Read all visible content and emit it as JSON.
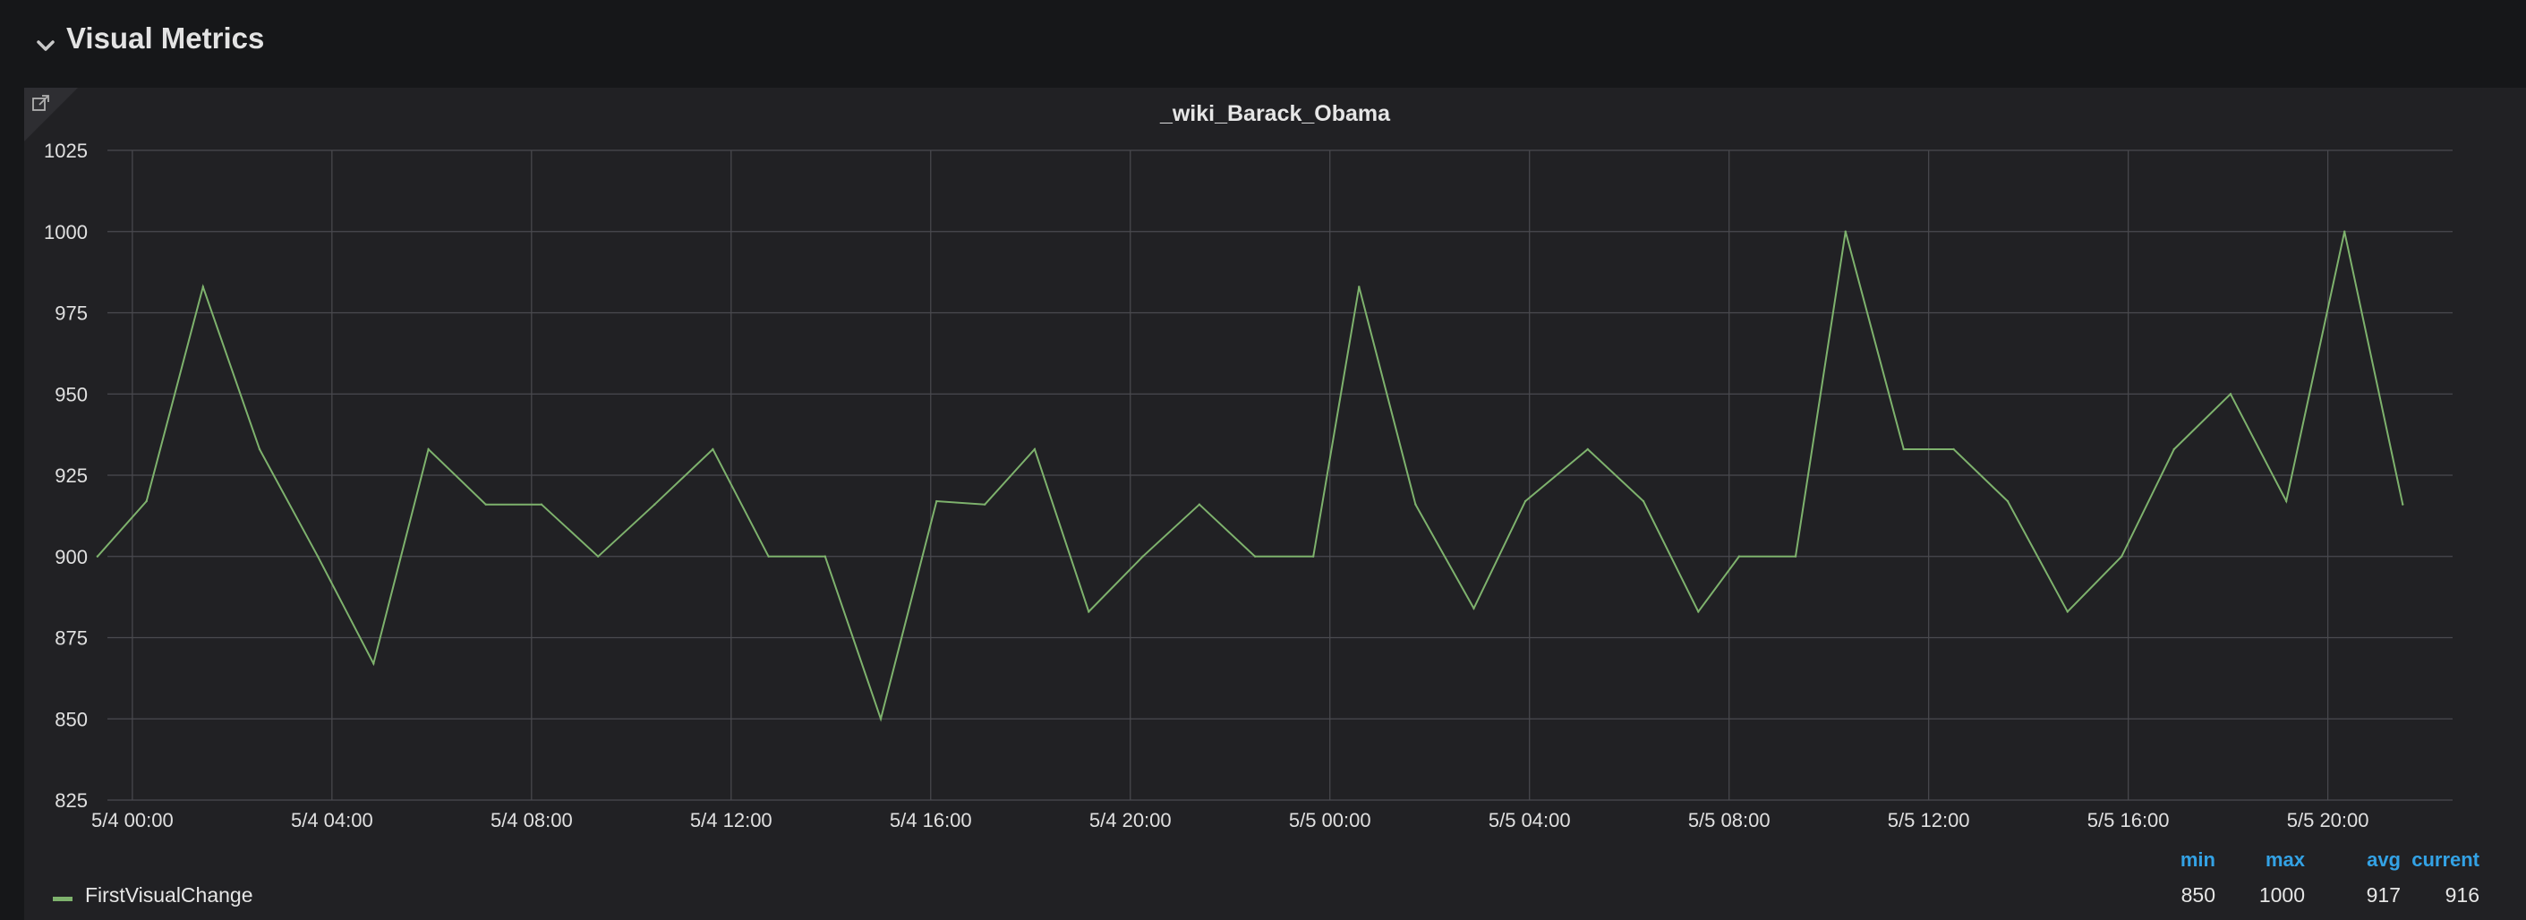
{
  "row": {
    "title": "Visual Metrics",
    "chevron_icon": "chevron-down-icon"
  },
  "panel": {
    "title": "_wiki_Barack_Obama",
    "link_icon": "external-link-icon"
  },
  "colors": {
    "series": "#7eb26d",
    "legend_header": "#33a2e5",
    "panel_bg": "#212124",
    "page_bg": "#161719",
    "grid": "#4a4a4f"
  },
  "chart_data": {
    "type": "line",
    "title": "_wiki_Barack_Obama",
    "xlabel": "",
    "ylabel": "",
    "ylim": [
      825,
      1025
    ],
    "yticks": [
      825,
      850,
      875,
      900,
      925,
      950,
      975,
      1000,
      1025
    ],
    "x_start": "5/3 23:30",
    "x_end": "5/5 22:30",
    "x_ticks": [
      "5/4 00:00",
      "5/4 04:00",
      "5/4 08:00",
      "5/4 12:00",
      "5/4 16:00",
      "5/4 20:00",
      "5/5 00:00",
      "5/5 04:00",
      "5/5 08:00",
      "5/5 12:00",
      "5/5 16:00",
      "5/5 20:00"
    ],
    "grid": true,
    "legend_position": "bottom",
    "series": [
      {
        "name": "FirstVisualChange",
        "x": [
          "5/3 23:18",
          "5/4 00:17",
          "5/4 01:25",
          "5/4 02:33",
          "5/4 03:43",
          "5/4 04:50",
          "5/4 05:56",
          "5/4 07:05",
          "5/4 08:12",
          "5/4 09:20",
          "5/4 10:28",
          "5/4 11:38",
          "5/4 12:45",
          "5/4 13:53",
          "5/4 15:00",
          "5/4 16:07",
          "5/4 17:05",
          "5/4 18:05",
          "5/4 19:10",
          "5/4 20:15",
          "5/4 21:23",
          "5/4 22:30",
          "5/4 23:40",
          "5/5 00:35",
          "5/5 01:43",
          "5/5 02:53",
          "5/5 03:55",
          "5/5 05:10",
          "5/5 06:17",
          "5/5 07:23",
          "5/5 08:12",
          "5/5 09:20",
          "5/5 10:20",
          "5/5 11:30",
          "5/5 12:30",
          "5/5 13:35",
          "5/5 14:47",
          "5/5 15:52",
          "5/5 16:55",
          "5/5 18:03",
          "5/5 19:10",
          "5/5 20:20",
          "5/5 21:30"
        ],
        "values": [
          900,
          917,
          983,
          933,
          900,
          867,
          933,
          916,
          916,
          900,
          916,
          933,
          900,
          900,
          850,
          917,
          916,
          933,
          883,
          900,
          916,
          900,
          900,
          983,
          916,
          884,
          917,
          933,
          917,
          883,
          900,
          900,
          1000,
          933,
          933,
          917,
          883,
          900,
          933,
          950,
          917,
          1000,
          916
        ]
      }
    ]
  },
  "legend": {
    "headers": [
      "min",
      "max",
      "avg",
      "current"
    ],
    "rows": [
      {
        "name": "FirstVisualChange",
        "min": "850",
        "max": "1000",
        "avg": "917",
        "current": "916"
      }
    ]
  }
}
